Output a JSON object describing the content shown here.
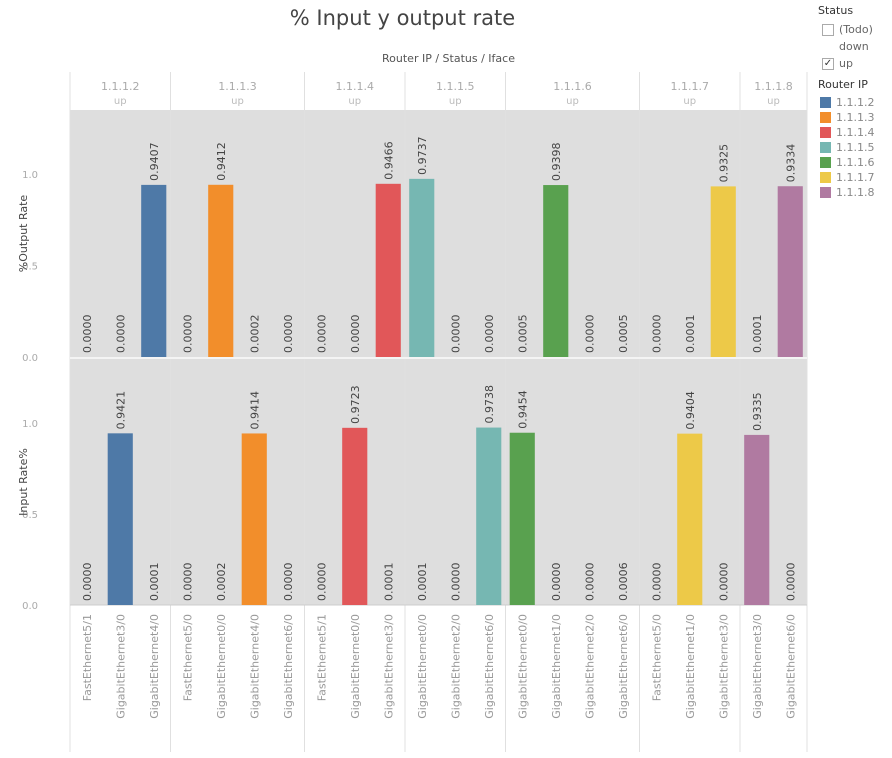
{
  "title": "% Input y output rate",
  "legend": {
    "status_title": "Status",
    "status_filters": [
      {
        "label": "(Todo)",
        "checked": false
      },
      {
        "label": "down",
        "checked": false,
        "checkbox_hidden": true
      },
      {
        "label": "up",
        "checked": true
      }
    ],
    "router_title": "Router IP",
    "router_colors": [
      {
        "label": "1.1.1.2",
        "color": "#4e79a7"
      },
      {
        "label": "1.1.1.3",
        "color": "#f28e2b"
      },
      {
        "label": "1.1.1.4",
        "color": "#e15759"
      },
      {
        "label": "1.1.1.5",
        "color": "#76b7b2"
      },
      {
        "label": "1.1.1.6",
        "color": "#59a14f"
      },
      {
        "label": "1.1.1.7",
        "color": "#edc948"
      },
      {
        "label": "1.1.1.8",
        "color": "#b07aa1"
      }
    ]
  },
  "chart_data": {
    "type": "bar",
    "title": "% Input y output rate",
    "column_header": "Router IP / Status / Iface",
    "ylim": [
      0,
      1.35
    ],
    "y_ticks": [
      "0.0",
      "0.5",
      "1.0"
    ],
    "panels": [
      {
        "ylabel": "%Output Rate",
        "key": "output"
      },
      {
        "ylabel": "Input Rate%",
        "key": "input"
      }
    ],
    "groups": [
      {
        "ip": "1.1.1.2",
        "status": "up",
        "color": "#4e79a7",
        "bars": [
          {
            "iface": "FastEthernet5/1",
            "output": 0.0,
            "output_label": "0.0000",
            "input": 0.0,
            "input_label": "0.0000"
          },
          {
            "iface": "GigabitEthernet3/0",
            "output": 0.0,
            "output_label": "0.0000",
            "input": 0.9421,
            "input_label": "0.9421"
          },
          {
            "iface": "GigabitEthernet4/0",
            "output": 0.9407,
            "output_label": "0.9407",
            "input": 0.0001,
            "input_label": "0.0001"
          }
        ]
      },
      {
        "ip": "1.1.1.3",
        "status": "up",
        "color": "#f28e2b",
        "bars": [
          {
            "iface": "FastEthernet5/0",
            "output": 0.0,
            "output_label": "0.0000",
            "input": 0.0,
            "input_label": "0.0000"
          },
          {
            "iface": "GigabitEthernet0/0",
            "output": 0.9412,
            "output_label": "0.9412",
            "input": 0.0002,
            "input_label": "0.0002"
          },
          {
            "iface": "GigabitEthernet4/0",
            "output": 0.0002,
            "output_label": "0.0002",
            "input": 0.9414,
            "input_label": "0.9414"
          },
          {
            "iface": "GigabitEthernet6/0",
            "output": 0.0,
            "output_label": "0.0000",
            "input": 0.0,
            "input_label": "0.0000"
          }
        ]
      },
      {
        "ip": "1.1.1.4",
        "status": "up",
        "color": "#e15759",
        "bars": [
          {
            "iface": "FastEthernet5/1",
            "output": 0.0,
            "output_label": "0.0000",
            "input": 0.0,
            "input_label": "0.0000"
          },
          {
            "iface": "GigabitEthernet0/0",
            "output": 0.0,
            "output_label": "0.0000",
            "input": 0.9723,
            "input_label": "0.9723"
          },
          {
            "iface": "GigabitEthernet3/0",
            "output": 0.9466,
            "output_label": "0.9466",
            "input": 0.0001,
            "input_label": "0.0001"
          }
        ]
      },
      {
        "ip": "1.1.1.5",
        "status": "up",
        "color": "#76b7b2",
        "bars": [
          {
            "iface": "GigabitEthernet0/0",
            "output": 0.9737,
            "output_label": "0.9737",
            "input": 0.0001,
            "input_label": "0.0001"
          },
          {
            "iface": "GigabitEthernet2/0",
            "output": 0.0,
            "output_label": "0.0000",
            "input": 0.0,
            "input_label": "0.0000"
          },
          {
            "iface": "GigabitEthernet6/0",
            "output": 0.0,
            "output_label": "0.0000",
            "input": 0.9738,
            "input_label": "0.9738"
          }
        ]
      },
      {
        "ip": "1.1.1.6",
        "status": "up",
        "color": "#59a14f",
        "bars": [
          {
            "iface": "GigabitEthernet0/0",
            "output": 0.0005,
            "output_label": "0.0005",
            "input": 0.9454,
            "input_label": "0.9454"
          },
          {
            "iface": "GigabitEthernet1/0",
            "output": 0.9398,
            "output_label": "0.9398",
            "input": 0.0,
            "input_label": "0.0000"
          },
          {
            "iface": "GigabitEthernet2/0",
            "output": 0.0,
            "output_label": "0.0000",
            "input": 0.0,
            "input_label": "0.0000"
          },
          {
            "iface": "GigabitEthernet6/0",
            "output": 0.0005,
            "output_label": "0.0005",
            "input": 0.0006,
            "input_label": "0.0006"
          }
        ]
      },
      {
        "ip": "1.1.1.7",
        "status": "up",
        "color": "#edc948",
        "bars": [
          {
            "iface": "FastEthernet5/0",
            "output": 0.0,
            "output_label": "0.0000",
            "input": 0.0,
            "input_label": "0.0000"
          },
          {
            "iface": "GigabitEthernet1/0",
            "output": 0.0001,
            "output_label": "0.0001",
            "input": 0.9404,
            "input_label": "0.9404"
          },
          {
            "iface": "GigabitEthernet3/0",
            "output": 0.9325,
            "output_label": "0.9325",
            "input": 0.0,
            "input_label": "0.0000"
          }
        ]
      },
      {
        "ip": "1.1.1.8",
        "status": "up",
        "color": "#b07aa1",
        "bars": [
          {
            "iface": "GigabitEthernet3/0",
            "output": 0.0001,
            "output_label": "0.0001",
            "input": 0.9335,
            "input_label": "0.9335"
          },
          {
            "iface": "GigabitEthernet6/0",
            "output": 0.9334,
            "output_label": "0.9334",
            "input": 0.0,
            "input_label": "0.0000"
          }
        ]
      }
    ]
  }
}
